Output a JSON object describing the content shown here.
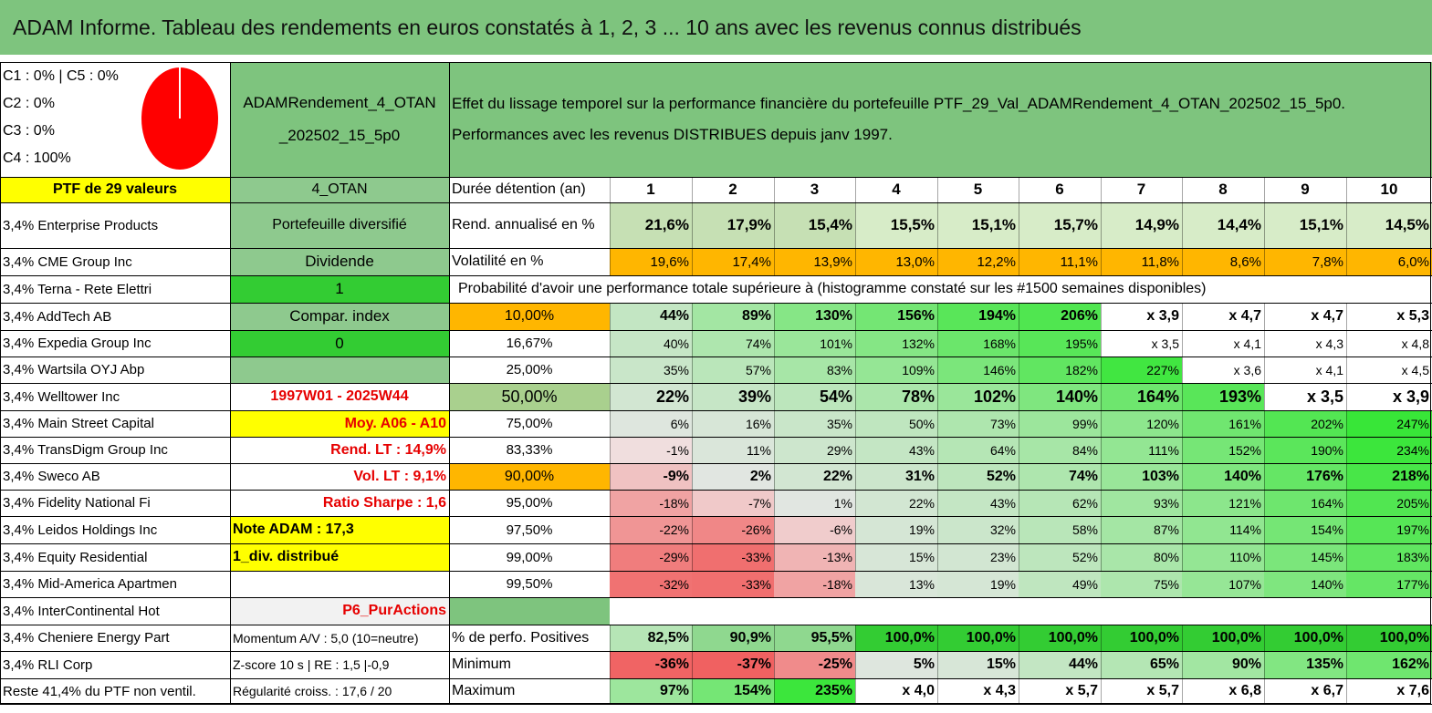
{
  "title": "ADAM Informe. Tableau des rendements en euros constatés à 1, 2, 3 ... 10 ans avec les revenus connus distribués",
  "allocation": {
    "line1": "C1 : 0% | C5 : 0%",
    "line2": "C2 : 0%",
    "line3": "C3 : 0%",
    "line4": "C4 : 100%",
    "pie_shares": [
      0,
      0,
      0,
      100,
      0
    ],
    "pie_color": "#ff0000"
  },
  "portfolio_name_line1": "ADAMRendement_4_OTAN",
  "portfolio_name_line2": "_202502_15_5p0",
  "description_line1": "Effet du lissage temporel sur la performance financière du portefeuille PTF_29_Val_ADAMRendement_4_OTAN_202502_15_5p0.",
  "description_line2": "Performances avec les revenus DISTRIBUES depuis janv 1997.",
  "ptf_label": "PTF de 29 valeurs",
  "holdings": [
    "3,4% Enterprise Products",
    "3,4% CME Group Inc",
    "3,4% Terna - Rete Elettri",
    "3,4% AddTech AB",
    "3,4% Expedia Group Inc",
    "3,4% Wartsila OYJ Abp",
    "3,4% Welltower Inc",
    "3,4% Main Street Capital",
    "3,4% TransDigm Group Inc",
    "3,4% Sweco AB",
    "3,4% Fidelity National Fi",
    "3,4% Leidos Holdings Inc",
    "3,4% Equity Residential",
    "3,4% Mid-America Apartmen",
    "3,4% InterContinental Hot",
    "3,4% Cheniere Energy Part",
    "3,4% RLI Corp",
    "Reste 41,4% du PTF non ventil."
  ],
  "info": [
    "4_OTAN",
    "Portefeuille diversifié",
    "Dividende",
    "1",
    "Compar. index",
    "0",
    "",
    "1997W01 - 2025W44",
    "Moy. A06 - A10",
    "Rend. LT : 14,9%",
    "Vol. LT : 9,1%",
    "Ratio Sharpe : 1,6",
    "Note ADAM : 17,3",
    "1_div. distribué",
    "",
    "P6_PurActions",
    "Momentum A/V : 5,0 (10=neutre)",
    "Z-score 10 s | RE : 1,5 |-0,9",
    "Régularité croiss. : 17,6 / 20"
  ],
  "duration_label": "Durée détention (an)",
  "years": [
    "1",
    "2",
    "3",
    "4",
    "5",
    "6",
    "7",
    "8",
    "9",
    "10"
  ],
  "rend_label": "Rend. annualisé en %",
  "rend": [
    "21,6%",
    "17,9%",
    "15,4%",
    "15,5%",
    "15,1%",
    "15,7%",
    "14,9%",
    "14,4%",
    "15,1%",
    "14,5%"
  ],
  "vol_label": "Volatilité en %",
  "vol": [
    "19,6%",
    "17,4%",
    "13,9%",
    "13,0%",
    "12,2%",
    "11,1%",
    "11,8%",
    "8,6%",
    "7,8%",
    "6,0%"
  ],
  "prob_heading": "Probabilité d'avoir une performance totale supérieure à (histogramme constaté sur les #1500 semaines disponibles)",
  "prob_rows": [
    {
      "p": "10,00%",
      "v": [
        "44%",
        "89%",
        "130%",
        "156%",
        "194%",
        "206%",
        "x 3,9",
        "x 4,7",
        "x 4,7",
        "x 5,3"
      ]
    },
    {
      "p": "16,67%",
      "v": [
        "40%",
        "74%",
        "101%",
        "132%",
        "168%",
        "195%",
        "x 3,5",
        "x 4,1",
        "x 4,3",
        "x 4,8"
      ]
    },
    {
      "p": "25,00%",
      "v": [
        "35%",
        "57%",
        "83%",
        "109%",
        "146%",
        "182%",
        "227%",
        "x 3,6",
        "x 4,1",
        "x 4,5"
      ]
    },
    {
      "p": "50,00%",
      "v": [
        "22%",
        "39%",
        "54%",
        "78%",
        "102%",
        "140%",
        "164%",
        "193%",
        "x 3,5",
        "x 3,9"
      ]
    },
    {
      "p": "75,00%",
      "v": [
        "6%",
        "16%",
        "35%",
        "50%",
        "73%",
        "99%",
        "120%",
        "161%",
        "202%",
        "247%"
      ]
    },
    {
      "p": "83,33%",
      "v": [
        "-1%",
        "11%",
        "29%",
        "43%",
        "64%",
        "84%",
        "111%",
        "152%",
        "190%",
        "234%"
      ]
    },
    {
      "p": "90,00%",
      "v": [
        "-9%",
        "2%",
        "22%",
        "31%",
        "52%",
        "74%",
        "103%",
        "140%",
        "176%",
        "218%"
      ]
    },
    {
      "p": "95,00%",
      "v": [
        "-18%",
        "-7%",
        "1%",
        "22%",
        "43%",
        "62%",
        "93%",
        "121%",
        "164%",
        "205%"
      ]
    },
    {
      "p": "97,50%",
      "v": [
        "-22%",
        "-26%",
        "-6%",
        "19%",
        "32%",
        "58%",
        "87%",
        "114%",
        "154%",
        "197%"
      ]
    },
    {
      "p": "99,00%",
      "v": [
        "-29%",
        "-33%",
        "-13%",
        "15%",
        "23%",
        "52%",
        "80%",
        "110%",
        "145%",
        "183%"
      ]
    },
    {
      "p": "99,50%",
      "v": [
        "-32%",
        "-33%",
        "-18%",
        "13%",
        "19%",
        "49%",
        "75%",
        "107%",
        "140%",
        "177%"
      ]
    }
  ],
  "pos_label": "% de perfo. Positives",
  "pos": [
    "82,5%",
    "90,9%",
    "95,5%",
    "100,0%",
    "100,0%",
    "100,0%",
    "100,0%",
    "100,0%",
    "100,0%",
    "100,0%"
  ],
  "min_label": "Minimum",
  "min": [
    "-36%",
    "-37%",
    "-25%",
    "5%",
    "15%",
    "44%",
    "65%",
    "90%",
    "135%",
    "162%"
  ],
  "max_label": "Maximum",
  "max": [
    "97%",
    "154%",
    "235%",
    "x 4,0",
    "x 4,3",
    "x 5,7",
    "x 5,7",
    "x 6,8",
    "x 6,7",
    "x 7,6"
  ]
}
